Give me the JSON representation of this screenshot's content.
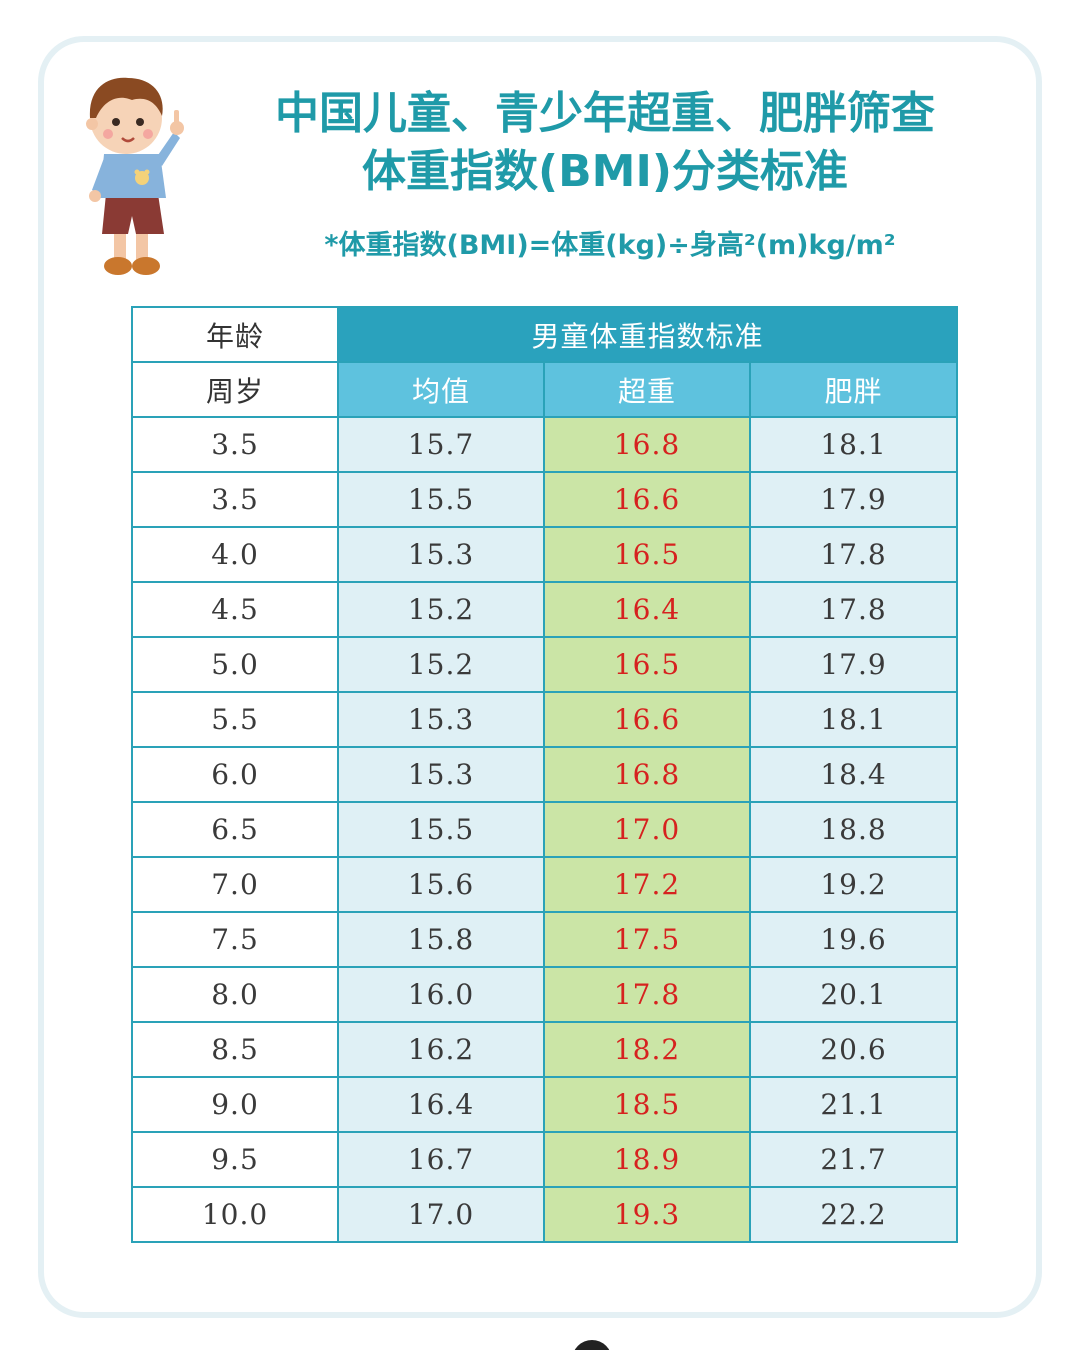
{
  "colors": {
    "title": "#1f9aa8",
    "header_group_bg": "#2aa2bd",
    "header_sub_bg": "#5ec2de",
    "mean_bg": "#dff0f5",
    "overweight_bg": "#cbe5a6",
    "overweight_text": "#d6221f",
    "border": "#2aa2b8"
  },
  "mascot": {
    "icon": "cartoon-boy-pointing-icon"
  },
  "title": {
    "line1": "中国儿童、青少年超重、肥胖筛查",
    "line2": "体重指数(BMI)分类标准"
  },
  "formula": "*体重指数(BMI)=体重(kg)÷身高²(m)kg/m²",
  "table": {
    "header": {
      "age_top": "年龄",
      "age_bottom": "周岁",
      "group": "男童体重指数标准",
      "mean": "均值",
      "overweight": "超重",
      "obese": "肥胖"
    },
    "rows": [
      {
        "age": "3.5",
        "mean": "15.7",
        "overweight": "16.8",
        "obese": "18.1"
      },
      {
        "age": "3.5",
        "mean": "15.5",
        "overweight": "16.6",
        "obese": "17.9"
      },
      {
        "age": "4.0",
        "mean": "15.3",
        "overweight": "16.5",
        "obese": "17.8"
      },
      {
        "age": "4.5",
        "mean": "15.2",
        "overweight": "16.4",
        "obese": "17.8"
      },
      {
        "age": "5.0",
        "mean": "15.2",
        "overweight": "16.5",
        "obese": "17.9"
      },
      {
        "age": "5.5",
        "mean": "15.3",
        "overweight": "16.6",
        "obese": "18.1"
      },
      {
        "age": "6.0",
        "mean": "15.3",
        "overweight": "16.8",
        "obese": "18.4"
      },
      {
        "age": "6.5",
        "mean": "15.5",
        "overweight": "17.0",
        "obese": "18.8"
      },
      {
        "age": "7.0",
        "mean": "15.6",
        "overweight": "17.2",
        "obese": "19.2"
      },
      {
        "age": "7.5",
        "mean": "15.8",
        "overweight": "17.5",
        "obese": "19.6"
      },
      {
        "age": "8.0",
        "mean": "16.0",
        "overweight": "17.8",
        "obese": "20.1"
      },
      {
        "age": "8.5",
        "mean": "16.2",
        "overweight": "18.2",
        "obese": "20.6"
      },
      {
        "age": "9.0",
        "mean": "16.4",
        "overweight": "18.5",
        "obese": "21.1"
      },
      {
        "age": "9.5",
        "mean": "16.7",
        "overweight": "18.9",
        "obese": "21.7"
      },
      {
        "age": "10.0",
        "mean": "17.0",
        "overweight": "19.3",
        "obese": "22.2"
      }
    ]
  }
}
